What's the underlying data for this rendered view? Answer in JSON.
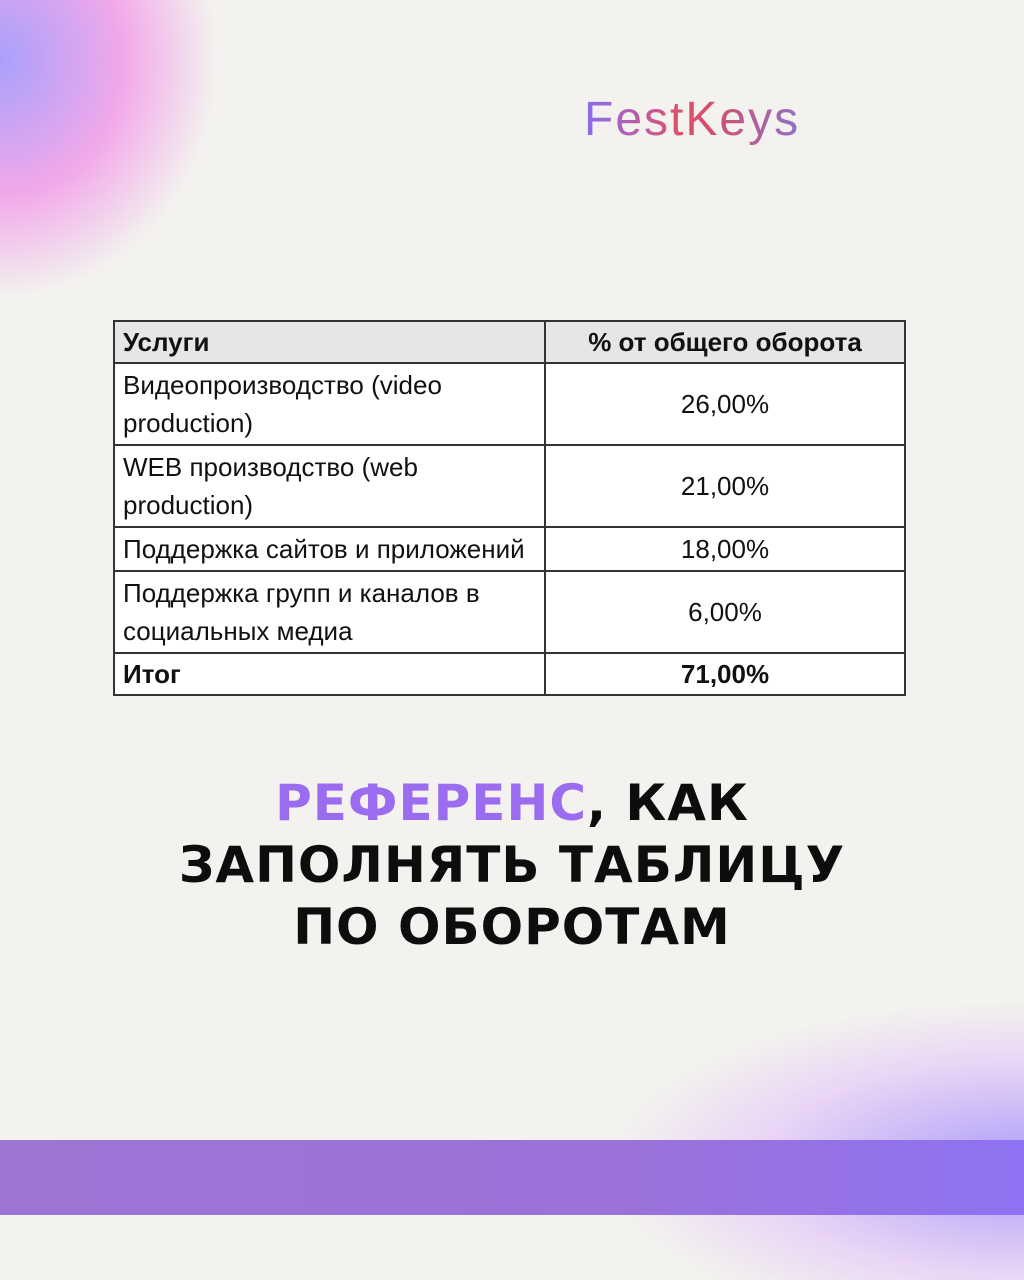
{
  "brand": {
    "logo": "FestKeys"
  },
  "table": {
    "headers": [
      "Услуги",
      "% от общего оборота"
    ],
    "rows": [
      {
        "service": "Видеопроизводство (video production)",
        "percent": "26,00%"
      },
      {
        "service": "WEB производство (web production)",
        "percent": "21,00%"
      },
      {
        "service": "Поддержка сайтов и приложений",
        "percent": "18,00%"
      },
      {
        "service": "Поддержка групп и каналов в социальных медиа",
        "percent": "6,00%"
      }
    ],
    "total": {
      "label": "Итог",
      "percent": "71,00%"
    }
  },
  "headline": {
    "accent": "РЕФЕРЕНС",
    "rest1": ", КАК",
    "line2": "ЗАПОЛНЯТЬ ТАБЛИЦУ",
    "line3": "ПО ОБОРОТАМ"
  },
  "colors": {
    "accent": "#9b6bf0",
    "band": "#9a72d8"
  }
}
